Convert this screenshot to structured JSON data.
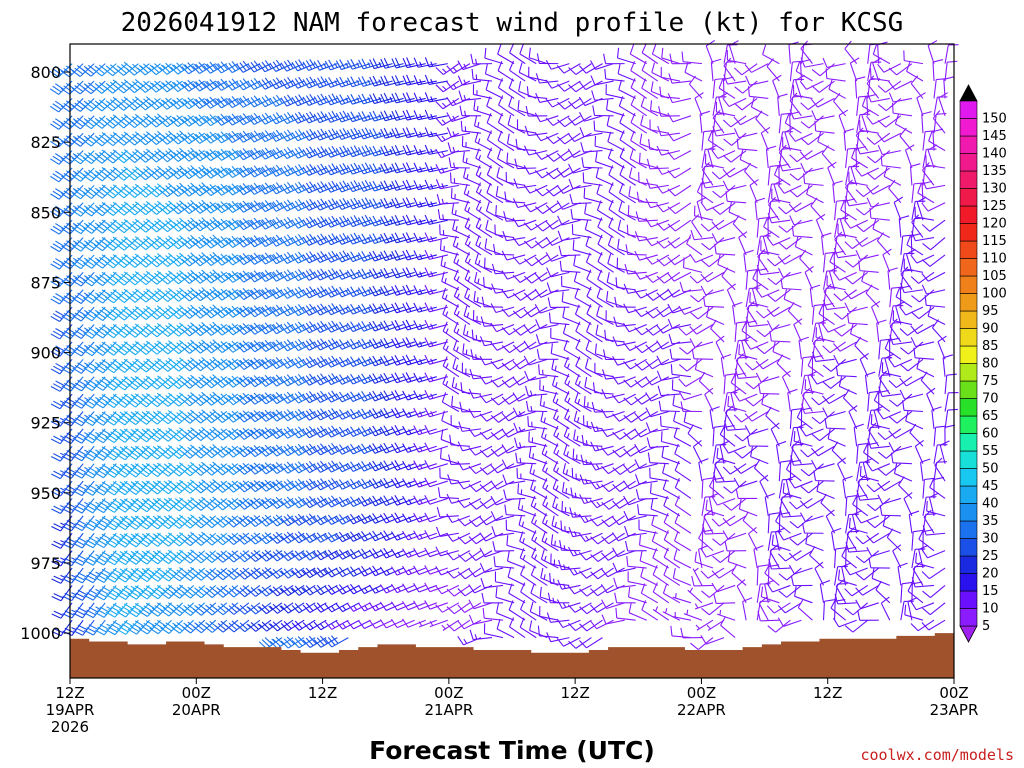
{
  "chart_data": {
    "type": "wind-barb-profile",
    "title": "2026041912 NAM forecast wind profile (kt) for KCSG",
    "xlabel": "Forecast Time (UTC)",
    "ylabel": "",
    "credit": "coolwx.com/models",
    "y_range": [
      1016,
      790
    ],
    "y_ticks": [
      800,
      825,
      850,
      875,
      900,
      925,
      950,
      975,
      1000
    ],
    "x_range_hours": [
      0,
      84
    ],
    "x_ticks": [
      {
        "hour": 0,
        "lines": [
          "12Z",
          "19APR",
          "2026"
        ]
      },
      {
        "hour": 12,
        "lines": [
          "00Z",
          "20APR"
        ]
      },
      {
        "hour": 24,
        "lines": [
          "12Z"
        ]
      },
      {
        "hour": 36,
        "lines": [
          "00Z",
          "21APR"
        ]
      },
      {
        "hour": 48,
        "lines": [
          "12Z"
        ]
      },
      {
        "hour": 60,
        "lines": [
          "00Z",
          "22APR"
        ]
      },
      {
        "hour": 72,
        "lines": [
          "12Z"
        ]
      },
      {
        "hour": 84,
        "lines": [
          "00Z",
          "23APR"
        ]
      }
    ],
    "surface_pressure": [
      1002,
      1003,
      1003,
      1004,
      1004,
      1003,
      1003,
      1004,
      1005,
      1005,
      1005,
      1006,
      1007,
      1007,
      1006,
      1005,
      1004,
      1004,
      1005,
      1005,
      1005,
      1006,
      1006,
      1006,
      1007,
      1007,
      1007,
      1006,
      1005,
      1005,
      1005,
      1005,
      1006,
      1006,
      1006,
      1005,
      1004,
      1003,
      1003,
      1002,
      1002,
      1002,
      1002,
      1001,
      1001,
      1000
    ],
    "wind_levels": [
      1000,
      975,
      950,
      925,
      900,
      875,
      850,
      825,
      800
    ],
    "wind_columns_every_hours": 6,
    "wind_speed_kt": [
      [
        20,
        40,
        35,
        25,
        15,
        8,
        6,
        10,
        12,
        8,
        6,
        8,
        10,
        12,
        10
      ],
      [
        22,
        45,
        40,
        30,
        25,
        20,
        10,
        12,
        14,
        10,
        8,
        10,
        12,
        12,
        10
      ],
      [
        25,
        45,
        42,
        35,
        30,
        25,
        12,
        12,
        14,
        12,
        10,
        10,
        10,
        10,
        10
      ],
      [
        25,
        45,
        40,
        35,
        30,
        25,
        12,
        12,
        14,
        12,
        10,
        10,
        10,
        10,
        10
      ],
      [
        28,
        42,
        40,
        35,
        30,
        25,
        14,
        12,
        12,
        10,
        10,
        8,
        10,
        10,
        10
      ],
      [
        30,
        42,
        40,
        35,
        30,
        25,
        14,
        12,
        12,
        10,
        10,
        8,
        8,
        10,
        10
      ],
      [
        32,
        42,
        40,
        35,
        30,
        28,
        15,
        12,
        12,
        10,
        8,
        8,
        8,
        10,
        10
      ],
      [
        32,
        40,
        38,
        35,
        30,
        28,
        15,
        12,
        10,
        10,
        8,
        8,
        8,
        8,
        8
      ],
      [
        30,
        38,
        35,
        30,
        28,
        25,
        15,
        12,
        10,
        10,
        8,
        8,
        8,
        8,
        8
      ]
    ],
    "colorbar": {
      "levels": [
        5,
        10,
        15,
        20,
        25,
        30,
        35,
        40,
        45,
        50,
        55,
        60,
        65,
        70,
        75,
        80,
        85,
        90,
        95,
        100,
        105,
        110,
        115,
        120,
        125,
        130,
        135,
        140,
        145,
        150
      ],
      "colors": [
        "#8a1cff",
        "#6a10ff",
        "#2a12ef",
        "#1a2ae0",
        "#1a50e8",
        "#1a72ee",
        "#1a90f0",
        "#1aaaf2",
        "#18c8f0",
        "#18e0d8",
        "#18f0b0",
        "#1ef060",
        "#28e028",
        "#6ae01a",
        "#b0ea1a",
        "#f0f01a",
        "#f0d81a",
        "#f0b81a",
        "#f09a1a",
        "#f0801a",
        "#f0661a",
        "#f04a1a",
        "#f0281a",
        "#f01a28",
        "#f01a4a",
        "#f01a6a",
        "#f01a8c",
        "#f01aae",
        "#f01ad0",
        "#e01aee"
      ],
      "top_arrow_color": "#000000",
      "bottom_arrow_color": "#a020f0"
    }
  }
}
